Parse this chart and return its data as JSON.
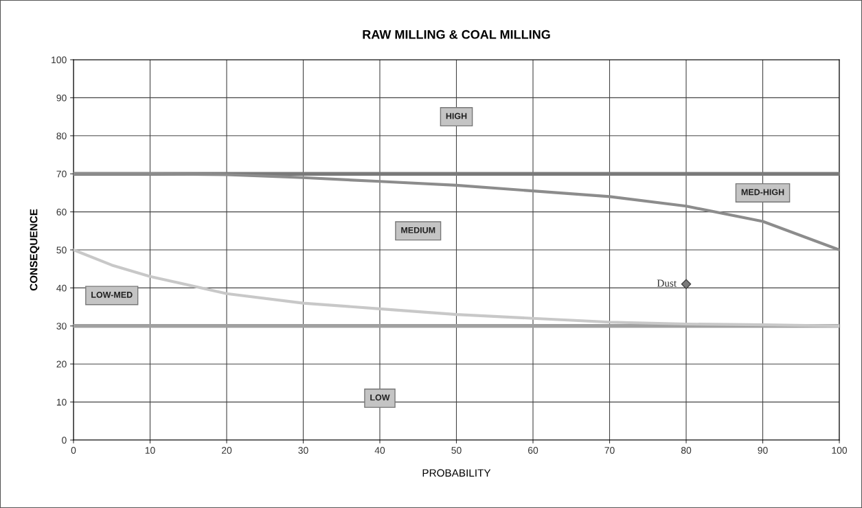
{
  "chart_data": {
    "type": "line",
    "title": "RAW MILLING & COAL MILLING",
    "xlabel": "PROBABILITY",
    "ylabel": "CONSEQUENCE",
    "xlim": [
      0,
      100
    ],
    "xticks": [
      0,
      10,
      20,
      30,
      40,
      50,
      60,
      70,
      80,
      90,
      100
    ],
    "ylim": [
      0,
      100
    ],
    "yticks": [
      0,
      10,
      20,
      30,
      40,
      50,
      60,
      70,
      80,
      90,
      100
    ],
    "grid": true,
    "series": [
      {
        "color": "#8c8c8c",
        "x": [
          0,
          10,
          20,
          30,
          40,
          50,
          60,
          70,
          80,
          90,
          100
        ],
        "values": [
          70,
          70,
          69.8,
          69,
          68,
          67,
          65.5,
          64,
          61.5,
          57.5,
          50
        ]
      },
      {
        "color": "#c8c8c8",
        "x": [
          0,
          5,
          10,
          20,
          30,
          40,
          50,
          60,
          70,
          80,
          90,
          100
        ],
        "values": [
          50,
          46,
          43,
          38.5,
          36,
          34.5,
          33,
          32,
          31,
          30.5,
          30.3,
          30
        ]
      },
      {
        "type": "scatter",
        "name": "Dust",
        "color": "#7a7a7a",
        "marker": "diamond",
        "x": [
          80
        ],
        "values": [
          41
        ]
      }
    ],
    "ref_lines": [
      {
        "axis": "y",
        "value": 70,
        "color": "#7a7a7a"
      },
      {
        "axis": "y",
        "value": 30,
        "color": "#a0a0a0"
      }
    ],
    "annotations": [
      "HIGH",
      "MED-HIGH",
      "MEDIUM",
      "LOW-MED",
      "LOW"
    ]
  }
}
